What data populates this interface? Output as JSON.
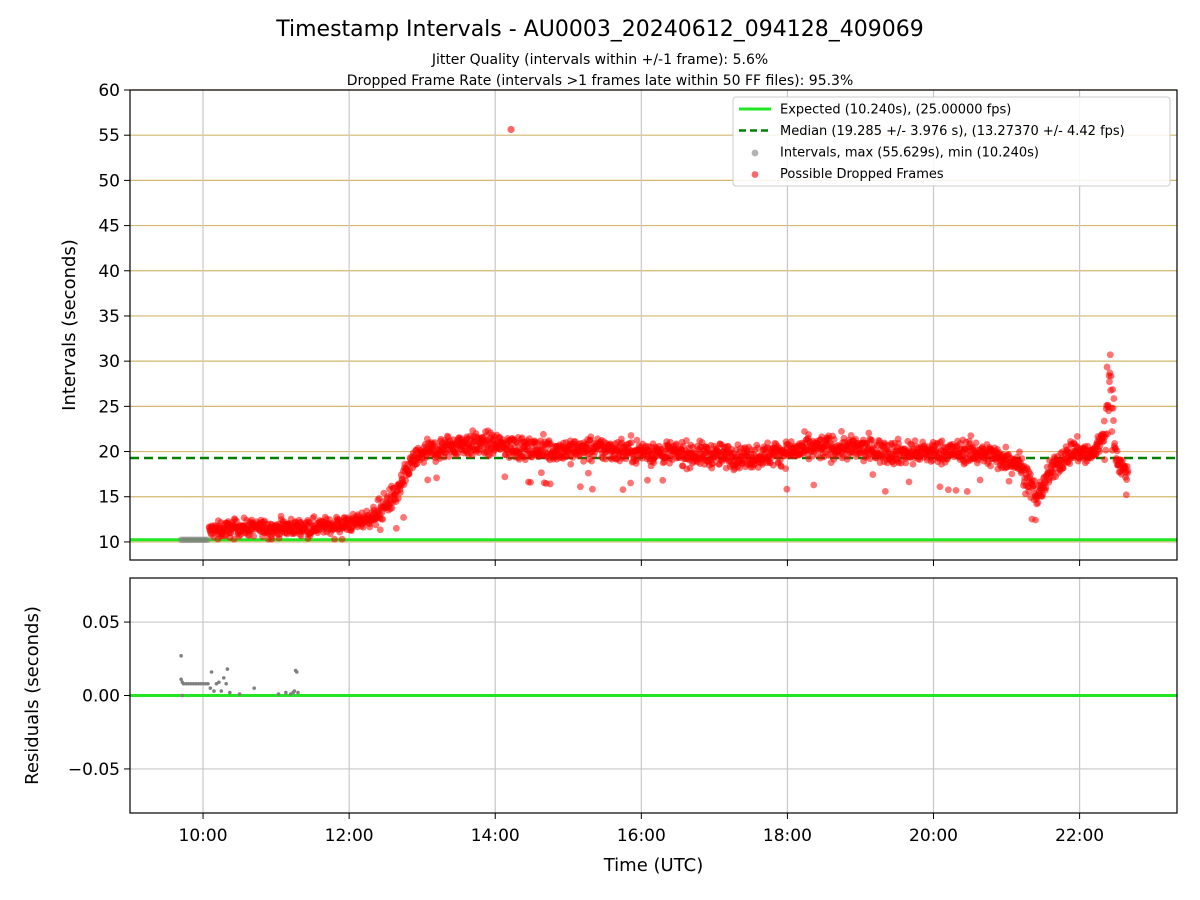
{
  "figure": {
    "title": "Timestamp Intervals - AU0003_20240612_094128_409069",
    "subtitle_1": "Jitter Quality (intervals within +/-1 frame): 5.6%",
    "subtitle_2": "Dropped Frame Rate (intervals >1 frames late within 50 FF files): 95.3%",
    "xlabel": "Time (UTC)"
  },
  "colors": {
    "expected": "#22e622",
    "median": "#008000",
    "intervals": "#808080",
    "dropped": "#ff0000",
    "hgrid_top": "#d2b96e",
    "grid": "#c8c8c8"
  },
  "chart_data": [
    {
      "type": "scatter",
      "name": "intervals",
      "ylabel": "Intervals (seconds)",
      "xlim": [
        "09:00",
        "23:20"
      ],
      "ylim": [
        8,
        60
      ],
      "yticks": [
        "10",
        "15",
        "20",
        "25",
        "30",
        "35",
        "40",
        "45",
        "50",
        "55",
        "60"
      ],
      "xticks": [
        "10:00",
        "12:00",
        "14:00",
        "16:00",
        "18:00",
        "20:00",
        "22:00"
      ],
      "grid": "both",
      "legend_placement": "top-right",
      "legend": [
        {
          "label": "Expected (10.240s), (25.00000 fps)",
          "kind": "solid-line",
          "color": "#22e622"
        },
        {
          "label": "Median (19.285 +/- 3.976 s), (13.27370 +/- 4.42 fps)",
          "kind": "dashed-line",
          "color": "#008000"
        },
        {
          "label": "Intervals, max (55.629s), min (10.240s)",
          "kind": "marker",
          "color": "#808080"
        },
        {
          "label": "Possible Dropped Frames",
          "kind": "marker",
          "color": "#ff0000"
        }
      ],
      "expected_value": 10.24,
      "median_value": 19.285,
      "intervals_points": {
        "x_start": "09:42",
        "x_end": "10:05",
        "y": 10.24
      },
      "dropped_trend": [
        [
          "10:05",
          11.2
        ],
        [
          "10:30",
          11.6
        ],
        [
          "11:00",
          11.5
        ],
        [
          "11:30",
          11.7
        ],
        [
          "12:00",
          12.0
        ],
        [
          "12:20",
          12.8
        ],
        [
          "12:40",
          15.5
        ],
        [
          "12:50",
          18.5
        ],
        [
          "13:00",
          19.8
        ],
        [
          "13:30",
          20.8
        ],
        [
          "14:00",
          20.8
        ],
        [
          "14:30",
          20.2
        ],
        [
          "15:00",
          20.2
        ],
        [
          "15:30",
          20.3
        ],
        [
          "16:00",
          20.0
        ],
        [
          "16:30",
          19.8
        ],
        [
          "17:00",
          19.6
        ],
        [
          "17:30",
          19.4
        ],
        [
          "18:00",
          20.0
        ],
        [
          "18:30",
          20.5
        ],
        [
          "19:00",
          20.3
        ],
        [
          "19:30",
          19.9
        ],
        [
          "20:00",
          19.9
        ],
        [
          "20:30",
          20.0
        ],
        [
          "20:50",
          19.5
        ],
        [
          "21:10",
          18.8
        ],
        [
          "21:25",
          15.0
        ],
        [
          "21:40",
          18.5
        ],
        [
          "21:55",
          20.2
        ],
        [
          "22:10",
          19.5
        ],
        [
          "22:20",
          22.0
        ],
        [
          "22:25",
          27.0
        ],
        [
          "22:30",
          19.5
        ],
        [
          "22:40",
          17.0
        ]
      ],
      "dropped_outlier": {
        "x": "14:13",
        "y": 55.629
      }
    },
    {
      "type": "scatter",
      "name": "residuals",
      "ylabel": "Residuals (seconds)",
      "xlabel": "Time (UTC)",
      "xlim": [
        "09:00",
        "23:20"
      ],
      "ylim": [
        -0.08,
        0.08
      ],
      "yticks": [
        "−0.05",
        "0.00",
        "0.05"
      ],
      "xticks": [
        "10:00",
        "12:00",
        "14:00",
        "16:00",
        "18:00",
        "20:00",
        "22:00"
      ],
      "grid": "both",
      "zero_line": 0,
      "points": [
        [
          "09:42",
          0.027
        ],
        [
          "09:42",
          0.011
        ],
        [
          "09:43",
          0.009
        ],
        [
          "09:44",
          0.008
        ],
        [
          "09:46",
          0.008
        ],
        [
          "09:48",
          0.008
        ],
        [
          "09:50",
          0.008
        ],
        [
          "09:52",
          0.008
        ],
        [
          "09:54",
          0.008
        ],
        [
          "09:56",
          0.008
        ],
        [
          "09:58",
          0.008
        ],
        [
          "10:00",
          0.008
        ],
        [
          "10:02",
          0.008
        ],
        [
          "10:04",
          0.008
        ],
        [
          "09:43",
          0.0
        ],
        [
          "10:06",
          0.005
        ],
        [
          "10:07",
          0.016
        ],
        [
          "10:09",
          0.003
        ],
        [
          "10:11",
          0.008
        ],
        [
          "10:13",
          0.009
        ],
        [
          "10:15",
          0.003
        ],
        [
          "10:17",
          0.012
        ],
        [
          "10:19",
          0.008
        ],
        [
          "10:20",
          0.018
        ],
        [
          "10:22",
          0.002
        ],
        [
          "10:30",
          0.001
        ],
        [
          "10:42",
          0.005
        ],
        [
          "11:02",
          0.001
        ],
        [
          "11:08",
          0.002
        ],
        [
          "11:12",
          0.001
        ],
        [
          "11:14",
          0.002
        ],
        [
          "11:15",
          0.003
        ],
        [
          "11:16",
          0.017
        ],
        [
          "11:17",
          0.016
        ],
        [
          "11:18",
          0.002
        ]
      ]
    }
  ]
}
